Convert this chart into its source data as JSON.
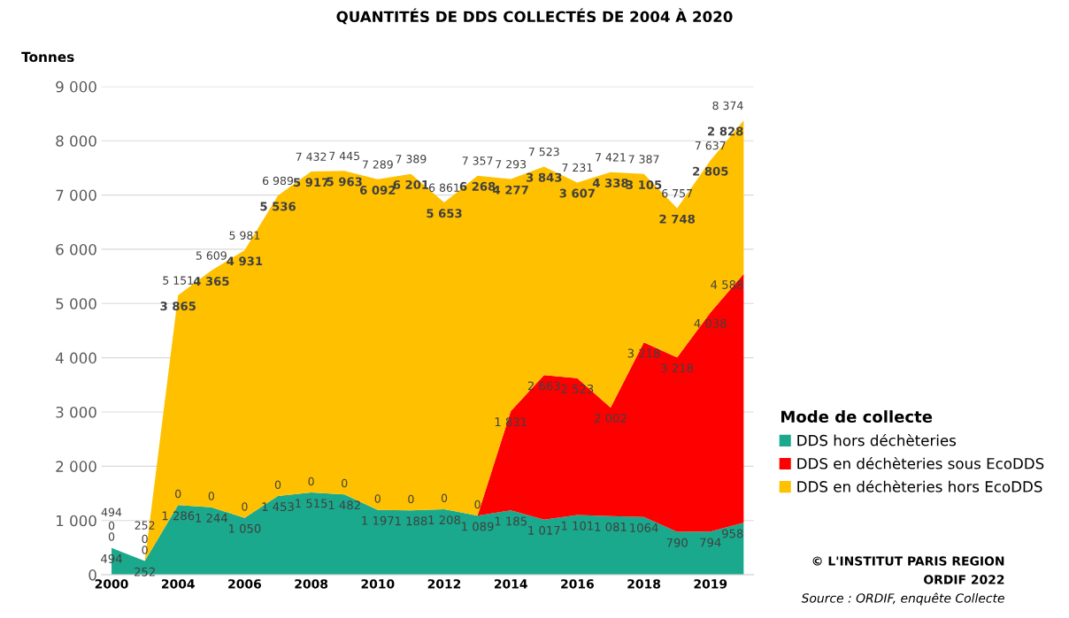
{
  "chart_data": {
    "type": "area",
    "stacked": true,
    "title": "QUANTITÉS DE DDS COLLECTÉS DE 2004 À 2020",
    "ylabel": "Tonnes",
    "legend_title": "Mode de collecte",
    "legend": "right",
    "categories": [
      "2000",
      null,
      "2004",
      null,
      "2006",
      null,
      "2008",
      null,
      "2010",
      null,
      "2012",
      null,
      "2014",
      null,
      "2016",
      null,
      "2018",
      null,
      "2019",
      null
    ],
    "ylim": [
      0,
      9000
    ],
    "yticks": [
      {
        "value": 0,
        "label": "0"
      },
      {
        "value": 1000,
        "label": "1 000"
      },
      {
        "value": 2000,
        "label": "2 000"
      },
      {
        "value": 3000,
        "label": "3 000"
      },
      {
        "value": 4000,
        "label": "4 000"
      },
      {
        "value": 5000,
        "label": "5 000"
      },
      {
        "value": 6000,
        "label": "6 000"
      },
      {
        "value": 7000,
        "label": "7 000"
      },
      {
        "value": 8000,
        "label": "8 000"
      },
      {
        "value": 9000,
        "label": "9 000"
      }
    ],
    "grid": "y",
    "series": [
      {
        "name": "DDS hors déchèteries",
        "color": "#1aa98c",
        "values": [
          494,
          252,
          1286,
          1244,
          1050,
          1453,
          1515,
          1482,
          1197,
          1188,
          1208,
          1089,
          1185,
          1017,
          1101,
          1081,
          1064,
          790,
          794,
          958
        ],
        "value_labels": [
          "494",
          "252",
          "1 286",
          "1 244",
          "1 050",
          "1 453",
          "1 515",
          "1 482",
          "1 197",
          "1 188",
          "1 208",
          "1 089",
          "1 185",
          "1 017",
          "1 101",
          "1 081",
          "1064",
          "790",
          "794",
          "958"
        ]
      },
      {
        "name": "DDS en déchèteries sous EcoDDS",
        "color": "#ff0000",
        "values": [
          0,
          0,
          0,
          0,
          0,
          0,
          0,
          0,
          0,
          0,
          0,
          0,
          1831,
          2663,
          2523,
          2002,
          3218,
          3218,
          4038,
          4588
        ],
        "value_labels": [
          "0",
          "0",
          "0",
          "0",
          "0",
          "0",
          "0",
          "0",
          "0",
          "0",
          "0",
          "0",
          "1 831",
          "2 663",
          "2 523",
          "2 002",
          "3 218",
          "3 218",
          "4 038",
          "4 588"
        ]
      },
      {
        "name": "DDS en déchèteries hors EcoDDS",
        "color": "#ffc000",
        "values": [
          0,
          0,
          3865,
          4365,
          4931,
          5536,
          5917,
          5963,
          6092,
          6201,
          5653,
          6268,
          4277,
          3843,
          3607,
          4338,
          3105,
          2748,
          2805,
          2828
        ],
        "value_labels": [
          "0",
          "0",
          "3 865",
          "4 365",
          "4 931",
          "5 536",
          "5 917",
          "5 963",
          "6 092",
          "6 201",
          "5 653",
          "6 268",
          "4 277",
          "3 843",
          "3 607",
          "4 338",
          "3 105",
          "2 748",
          "2 805",
          "2 828"
        ]
      }
    ],
    "totals": [
      "494",
      "252",
      "5 151",
      "5 609",
      "5 981",
      "6 989",
      "7 432",
      "7 445",
      "7 289",
      "7 389",
      "6 861",
      "7 357",
      "7 293",
      "7 523",
      "7 231",
      "7 421",
      "7 387",
      "6 757",
      "7 637",
      "8 374"
    ],
    "annotations": [
      "© L'INSTITUT PARIS REGION",
      "ORDIF 2022",
      "Source : ORDIF, enquête Collecte"
    ]
  }
}
